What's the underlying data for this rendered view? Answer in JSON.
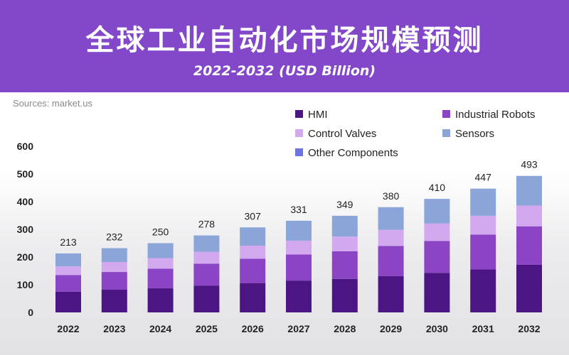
{
  "header": {
    "title": "全球工业自动化市场规模预测",
    "subtitle": "2022-2032 (USD Billion)"
  },
  "source": "Sources: market.us",
  "colors": {
    "header_bg": "#8347c9",
    "hmi": "#4b1683",
    "industrial_robots": "#8b44c4",
    "control_valves": "#d2a8ef",
    "sensors": "#8ba5d8",
    "other_components": "#6a73e0"
  },
  "chart_data": {
    "type": "bar",
    "stacked": true,
    "categories": [
      "2022",
      "2023",
      "2024",
      "2025",
      "2026",
      "2027",
      "2028",
      "2029",
      "2030",
      "2031",
      "2032"
    ],
    "ylim": [
      0,
      600
    ],
    "yticks": [
      0,
      100,
      200,
      300,
      400,
      500,
      600
    ],
    "legend_position": "top-right",
    "grid": false,
    "series": [
      {
        "name": "HMI",
        "color": "#4b1683",
        "values": [
          75,
          82,
          87,
          97,
          106,
          115,
          121,
          131,
          143,
          155,
          172
        ]
      },
      {
        "name": "Industrial Robots",
        "color": "#8b44c4",
        "values": [
          60,
          64,
          71,
          79,
          88,
          94,
          100,
          109,
          115,
          126,
          139
        ]
      },
      {
        "name": "Control Valves",
        "color": "#d2a8ef",
        "values": [
          31,
          36,
          38,
          43,
          47,
          50,
          53,
          58,
          63,
          68,
          75
        ]
      },
      {
        "name": "Sensors",
        "color": "#8ba5d8",
        "values": [
          47,
          50,
          54,
          59,
          66,
          72,
          75,
          82,
          89,
          98,
          107
        ]
      },
      {
        "name": "Other Components",
        "color": "#6a73e0",
        "values": [
          0,
          0,
          0,
          0,
          0,
          0,
          0,
          0,
          0,
          0,
          0
        ]
      }
    ],
    "totals": [
      213,
      232,
      250,
      278,
      307,
      331,
      349,
      380,
      410,
      447,
      493
    ]
  }
}
